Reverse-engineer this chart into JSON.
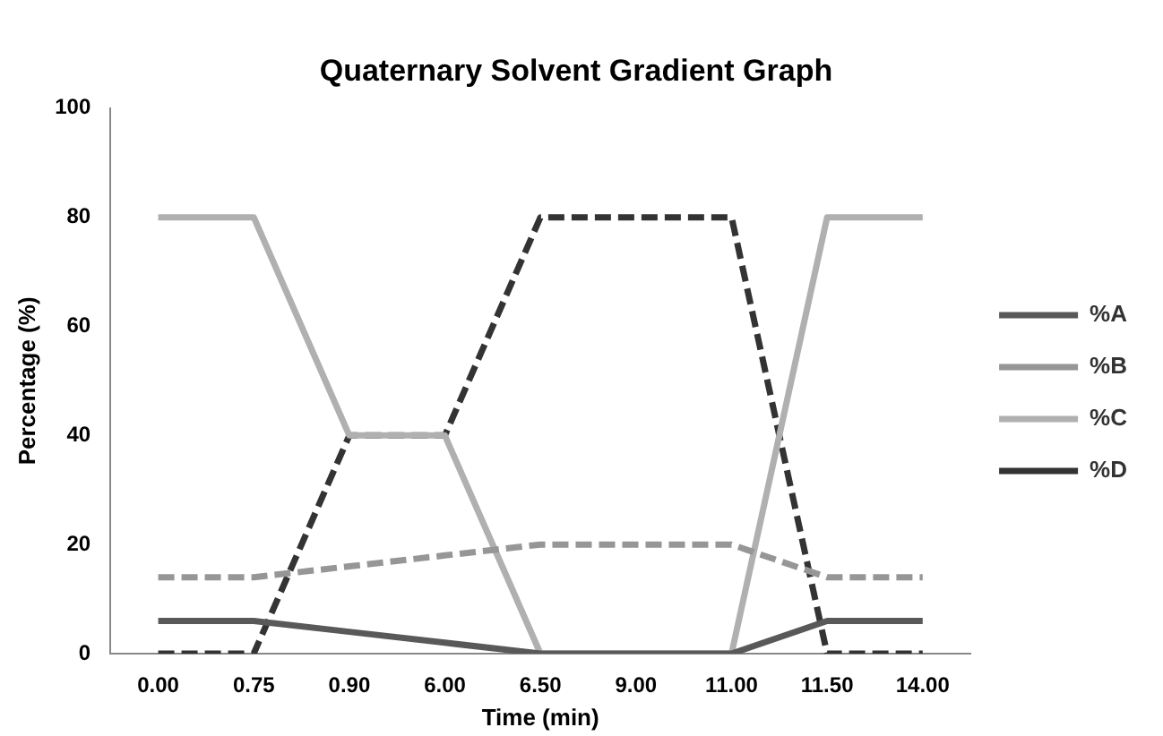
{
  "chart_data": {
    "type": "line",
    "title": "Quaternary Solvent Gradient Graph",
    "xlabel": "Time (min)",
    "ylabel": "Percentage (%)",
    "categories": [
      "0.00",
      "0.75",
      "0.90",
      "6.00",
      "6.50",
      "9.00",
      "11.00",
      "11.50",
      "14.00"
    ],
    "series": [
      {
        "name": "%A",
        "color": "#595959",
        "line_style": "solid",
        "values": [
          6,
          6,
          4,
          2,
          0,
          0,
          0,
          6,
          6
        ]
      },
      {
        "name": "%B",
        "color": "#969696",
        "line_style": "dashed",
        "values": [
          14,
          14,
          16,
          18,
          20,
          20,
          20,
          14,
          14
        ]
      },
      {
        "name": "%C",
        "color": "#b0b0b0",
        "line_style": "solid",
        "values": [
          80,
          80,
          40,
          40,
          0,
          0,
          0,
          80,
          80
        ]
      },
      {
        "name": "%D",
        "color": "#333333",
        "line_style": "dashed",
        "values": [
          0,
          0,
          40,
          40,
          80,
          80,
          80,
          0,
          0
        ]
      }
    ],
    "ylim": [
      0,
      100
    ],
    "yticks": [
      0,
      20,
      40,
      60,
      80,
      100
    ],
    "grid": false,
    "legend": "right",
    "marker": "none"
  }
}
